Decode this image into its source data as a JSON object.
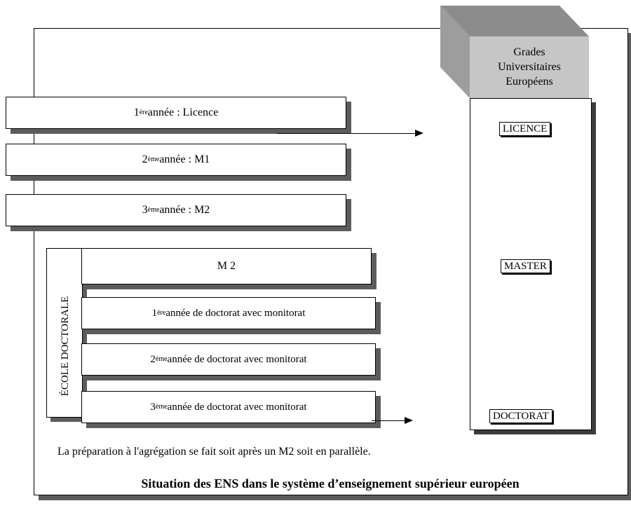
{
  "grades_header": {
    "line1": "Grades",
    "line2": "Universitaires",
    "line3": "Européens"
  },
  "grades": {
    "licence": "LICENCE",
    "master": "MASTER",
    "doctorat": "DOCTORAT"
  },
  "years": [
    {
      "num": "1",
      "sup": "ère",
      "text": " année : Licence"
    },
    {
      "num": "2",
      "sup": "ème",
      "text": " année : M1"
    },
    {
      "num": "3",
      "sup": "ème",
      "text": " année : M2"
    }
  ],
  "ecole_doctorale": "ÉCOLE DOCTORALE",
  "doctoral": [
    {
      "num": "",
      "sup": "",
      "text": "M 2"
    },
    {
      "num": "1",
      "sup": "ère",
      "text": " année de doctorat avec monitorat"
    },
    {
      "num": "2",
      "sup": "ème",
      "text": " année de doctorat avec monitorat"
    },
    {
      "num": "3",
      "sup": "ème",
      "text": " année de doctorat avec monitorat"
    }
  ],
  "note": "La préparation à l'agrégation se fait soit après un M2 soit en parallèle.",
  "title": "Situation des ENS dans le système d’enseignement supérieur européen"
}
